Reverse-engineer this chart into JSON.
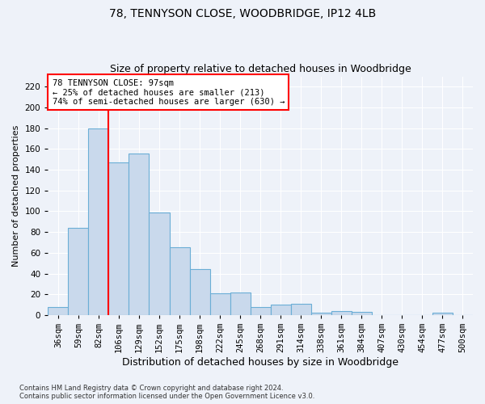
{
  "title1": "78, TENNYSON CLOSE, WOODBRIDGE, IP12 4LB",
  "title2": "Size of property relative to detached houses in Woodbridge",
  "xlabel": "Distribution of detached houses by size in Woodbridge",
  "ylabel": "Number of detached properties",
  "footnote": "Contains HM Land Registry data © Crown copyright and database right 2024.\nContains public sector information licensed under the Open Government Licence v3.0.",
  "bin_labels": [
    "36sqm",
    "59sqm",
    "82sqm",
    "106sqm",
    "129sqm",
    "152sqm",
    "175sqm",
    "198sqm",
    "222sqm",
    "245sqm",
    "268sqm",
    "291sqm",
    "314sqm",
    "338sqm",
    "361sqm",
    "384sqm",
    "407sqm",
    "430sqm",
    "454sqm",
    "477sqm",
    "500sqm"
  ],
  "bar_values": [
    8,
    84,
    180,
    147,
    156,
    99,
    65,
    44,
    21,
    22,
    8,
    10,
    11,
    2,
    4,
    3,
    0,
    0,
    0,
    2,
    0
  ],
  "bar_color": "#c9d9ec",
  "bar_edge_color": "#6baed6",
  "vline_color": "red",
  "annotation_text": "78 TENNYSON CLOSE: 97sqm\n← 25% of detached houses are smaller (213)\n74% of semi-detached houses are larger (630) →",
  "annotation_box_color": "white",
  "annotation_box_edge": "red",
  "ylim": [
    0,
    230
  ],
  "yticks": [
    0,
    20,
    40,
    60,
    80,
    100,
    120,
    140,
    160,
    180,
    200,
    220
  ],
  "bg_color": "#eef2f9",
  "grid_color": "white",
  "title1_fontsize": 10,
  "title2_fontsize": 9,
  "xlabel_fontsize": 9,
  "ylabel_fontsize": 8,
  "tick_fontsize": 7.5,
  "annot_fontsize": 7.5
}
